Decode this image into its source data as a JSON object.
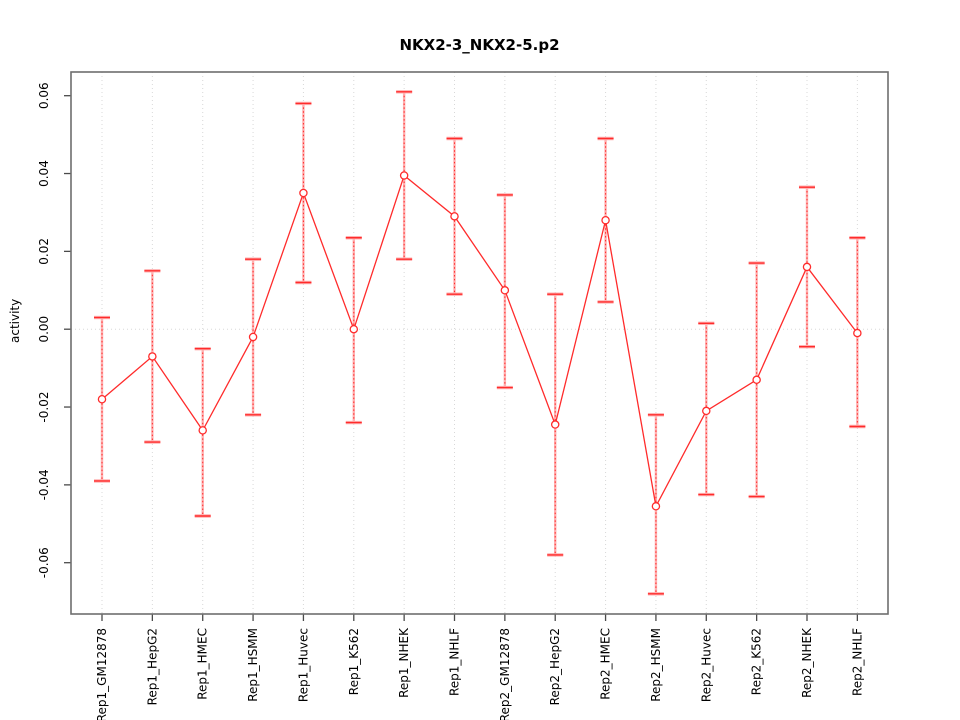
{
  "chart_data": {
    "type": "line",
    "title": "NKX2-3_NKX2-5.p2",
    "xlabel": "",
    "ylabel": "activity",
    "ylim": [
      -0.073,
      0.066
    ],
    "yticks": [
      -0.06,
      -0.04,
      -0.02,
      0.0,
      0.02,
      0.04,
      0.06
    ],
    "grid": {
      "vertical_dotted_per_category": true,
      "horizontal_zero_line_dotted": true
    },
    "legend": null,
    "categories": [
      "Rep1_GM12878",
      "Rep1_HepG2",
      "Rep1_HMEC",
      "Rep1_HSMM",
      "Rep1_Huvec",
      "Rep1_K562",
      "Rep1_NHEK",
      "Rep1_NHLF",
      "Rep2_GM12878",
      "Rep2_HepG2",
      "Rep2_HMEC",
      "Rep2_HSMM",
      "Rep2_Huvec",
      "Rep2_K562",
      "Rep2_NHEK",
      "Rep2_NHLF"
    ],
    "series": [
      {
        "name": "activity",
        "values": [
          -0.018,
          -0.007,
          -0.026,
          -0.002,
          0.035,
          0.0,
          0.0395,
          0.029,
          0.01,
          -0.0245,
          0.028,
          -0.0455,
          -0.021,
          -0.013,
          0.016,
          -0.001
        ],
        "err_high": [
          0.003,
          0.015,
          -0.005,
          0.018,
          0.058,
          0.0235,
          0.061,
          0.049,
          0.0345,
          0.009,
          0.049,
          -0.022,
          0.0015,
          0.017,
          0.0365,
          0.0235
        ],
        "err_low": [
          -0.039,
          -0.029,
          -0.048,
          -0.022,
          0.012,
          -0.024,
          0.018,
          0.009,
          -0.015,
          -0.058,
          0.007,
          -0.068,
          -0.0425,
          -0.043,
          -0.0045,
          -0.025
        ]
      }
    ],
    "colors": {
      "series_red": "#ff2b2b",
      "errorbar_fill": "#ffb0b0",
      "grid": "#d8d8d8",
      "box": "#6e6e6e",
      "tick": "#4a4a4a",
      "text": "#000000",
      "background": "#ffffff"
    }
  }
}
